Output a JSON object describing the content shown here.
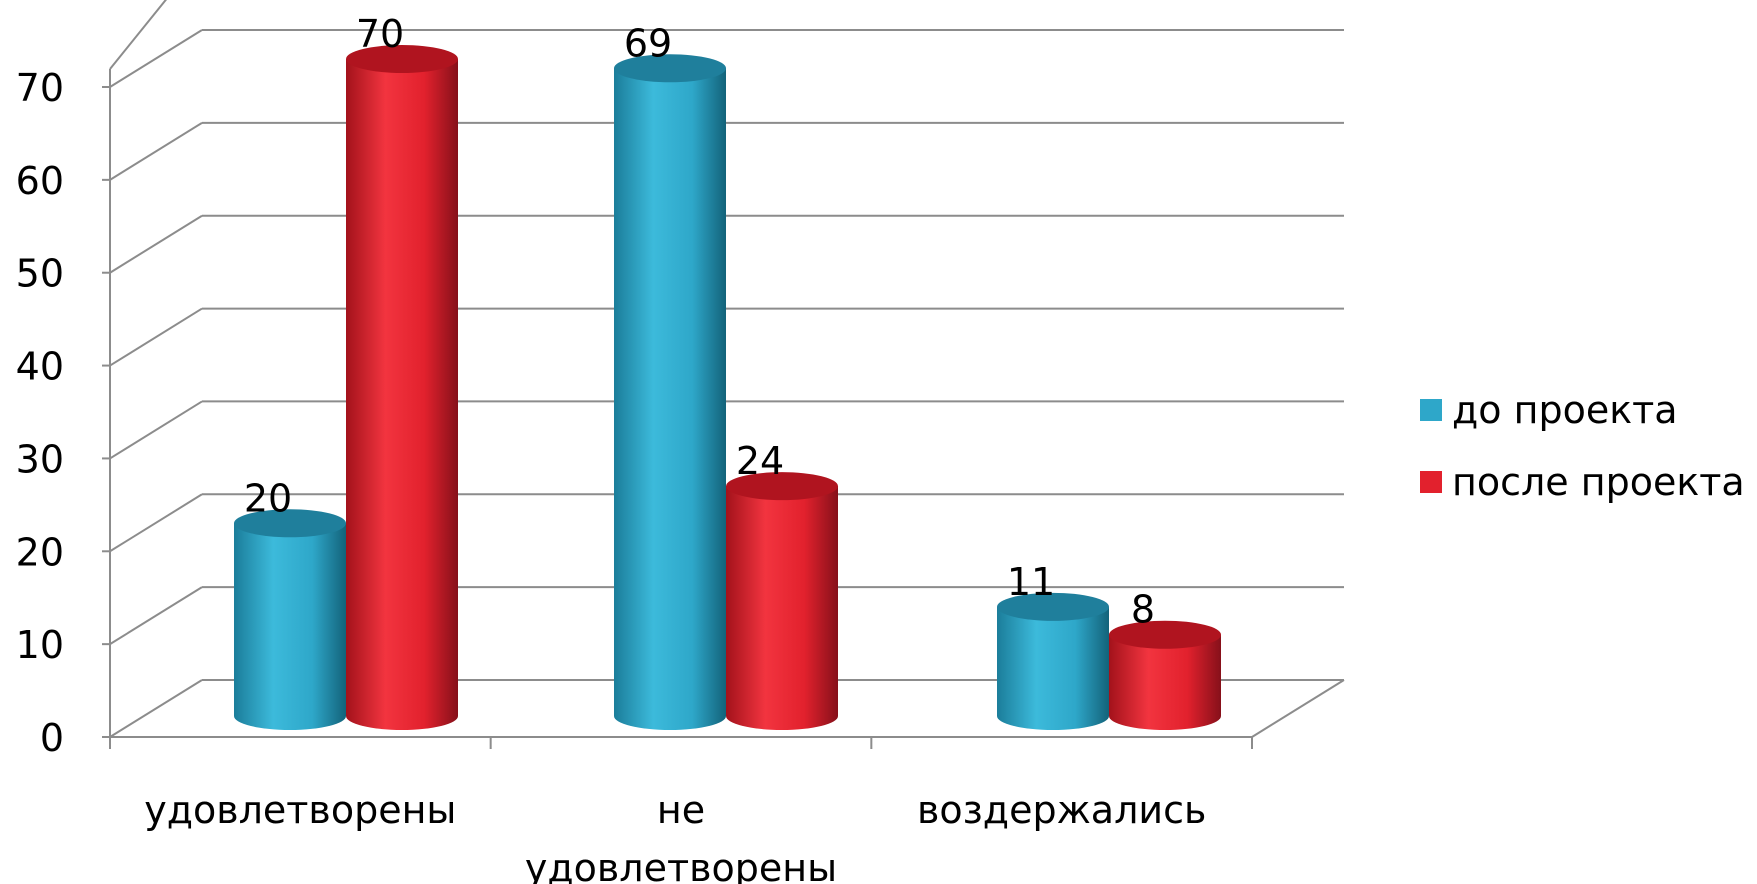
{
  "chart_data": {
    "type": "bar",
    "categories": [
      "удовлетворены",
      "не удовлетворены",
      "воздержались"
    ],
    "category_lines": [
      [
        "удовлетворены"
      ],
      [
        "не",
        "удовлетворены"
      ],
      [
        "воздержались"
      ]
    ],
    "series": [
      {
        "name": "до проекта",
        "values": [
          20,
          69,
          11
        ],
        "color": "#2ea7c9",
        "labels": [
          "20",
          "69",
          "11"
        ]
      },
      {
        "name": "после проекта",
        "values": [
          70,
          24,
          8
        ],
        "color": "#e2212d",
        "labels": [
          "70",
          "24",
          "8"
        ]
      }
    ],
    "ylim": [
      0,
      70
    ],
    "yticks": [
      0,
      10,
      20,
      30,
      40,
      50,
      60,
      70
    ],
    "grid": true,
    "legend_position": "right",
    "style": "3d-cylinder"
  }
}
